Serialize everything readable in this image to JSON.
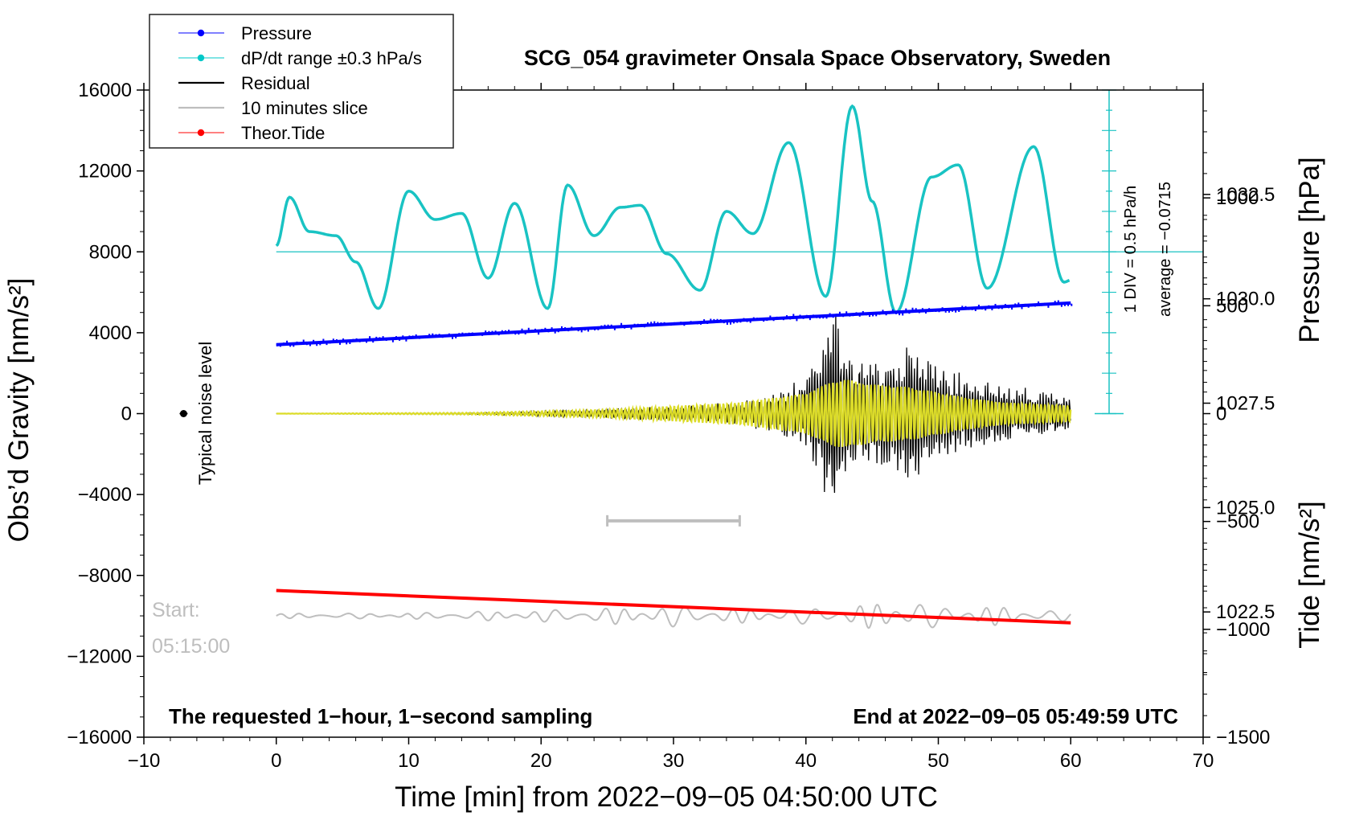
{
  "chart_data": {
    "type": "line",
    "title": "SCG_054 gravimeter Onsala Space Observatory, Sweden",
    "xlabel": "Time [min] from 2022−09−05 04:50:00 UTC",
    "ylabel_left": "Obs’d Gravity [nm/s²]",
    "ylabel_right_top": "Pressure [hPa]",
    "ylabel_right_bottom": "Tide [nm/s²]",
    "xlim": [
      -10,
      70
    ],
    "ylim_left": [
      -16000,
      16000
    ],
    "pressure_ylim": [
      1019.5,
      1035
    ],
    "tide_ylim": [
      -1500,
      1500
    ],
    "x_ticks": [
      "−10",
      "0",
      "10",
      "20",
      "30",
      "40",
      "50",
      "60",
      "70"
    ],
    "y_ticks_left": [
      "16000",
      "12000",
      "8000",
      "4000",
      "0",
      "−4000",
      "−8000",
      "−12000",
      "−16000"
    ],
    "y_ticks_pressure": [
      "1032.5",
      "1030.0",
      "1027.5",
      "1025.0",
      "1022.5"
    ],
    "y_ticks_tide": [
      "1000",
      "500",
      "0",
      "−500",
      "−1000",
      "−1500"
    ],
    "legend": {
      "position": "top-left",
      "entries": [
        {
          "label": "Pressure",
          "color": "#0000ff",
          "marker": "dot"
        },
        {
          "label": "dP/dt range ±0.3 hPa/s",
          "color": "#00c8c8",
          "marker": "dot"
        },
        {
          "label": "Residual",
          "color": "#000000",
          "marker": "line"
        },
        {
          "label": "10 minutes slice",
          "color": "#bebebe",
          "marker": "line"
        },
        {
          "label": "Theor.Tide",
          "color": "#ff0000",
          "marker": "dot"
        }
      ]
    },
    "annotations": {
      "noise_label": "Typical noise level",
      "div_label": "1 DIV = 0.5 hPa/h",
      "average_label": "average = −0.0715",
      "start_label": "Start:",
      "start_time": "05:15:00",
      "bottom_left": "The requested 1−hour, 1−second sampling",
      "bottom_right": "End at 2022−09−05 05:49:59 UTC"
    },
    "series": [
      {
        "name": "Pressure",
        "axis": "pressure",
        "color": "#0000ff",
        "x": [
          0,
          60
        ],
        "values": [
          1028.9,
          1029.9
        ]
      },
      {
        "name": "dP/dt",
        "axis": "left",
        "color": "#19c3c3",
        "x": [
          0,
          1,
          2.5,
          4.5,
          6,
          7.7,
          10,
          12,
          14,
          16,
          18,
          20.5,
          22,
          24,
          26,
          27.5,
          29.5,
          32,
          34,
          36,
          38.7,
          41.5,
          43.5,
          45,
          46.8,
          49.5,
          51.5,
          53.7,
          57.2,
          59.5,
          60
        ],
        "values": [
          8300,
          10700,
          9000,
          8800,
          7500,
          5200,
          11000,
          9600,
          9900,
          6700,
          10400,
          5200,
          11300,
          8800,
          10200,
          10300,
          7900,
          6100,
          10000,
          8900,
          13400,
          5800,
          15200,
          10500,
          5000,
          11700,
          12300,
          6200,
          13200,
          6500,
          6600
        ]
      },
      {
        "name": "Residual",
        "axis": "left",
        "color": "#000000",
        "x": [
          0,
          13,
          20,
          25,
          30,
          35,
          38,
          40,
          41,
          42,
          42.3,
          43,
          44,
          45,
          46,
          47,
          48,
          48.5,
          50,
          52,
          55,
          58,
          60
        ],
        "amplitude": [
          0,
          0,
          120,
          250,
          380,
          620,
          1100,
          2000,
          3200,
          5500,
          5800,
          3400,
          2900,
          2600,
          3100,
          3300,
          4400,
          3200,
          2400,
          2000,
          1500,
          1150,
          900
        ]
      },
      {
        "name": "Filtered residual",
        "axis": "left",
        "color": "#dcdc28",
        "x": [
          0,
          15,
          25,
          35,
          40,
          42,
          43,
          45,
          48,
          52,
          55,
          60
        ],
        "amplitude": [
          0,
          50,
          200,
          550,
          1000,
          1600,
          1700,
          1450,
          1300,
          800,
          550,
          400
        ]
      },
      {
        "name": "10 minutes slice",
        "axis": "left",
        "color": "#bebebe",
        "x": [
          0,
          10,
          20,
          25,
          30,
          35,
          40,
          44,
          46,
          47,
          48,
          50,
          53,
          55,
          58,
          60
        ],
        "baseline": -10000,
        "amplitude": [
          120,
          150,
          300,
          400,
          550,
          350,
          400,
          550,
          700,
          900,
          850,
          500,
          500,
          450,
          300,
          250
        ]
      },
      {
        "name": "Theor.Tide",
        "axis": "tide",
        "color": "#ff0000",
        "x": [
          0,
          60
        ],
        "values": [
          -820,
          -970
        ]
      }
    ],
    "slice_bar": {
      "x_start": 25,
      "x_end": 35,
      "y": -5300
    },
    "noise_point": {
      "x": -7,
      "y": 0
    }
  }
}
